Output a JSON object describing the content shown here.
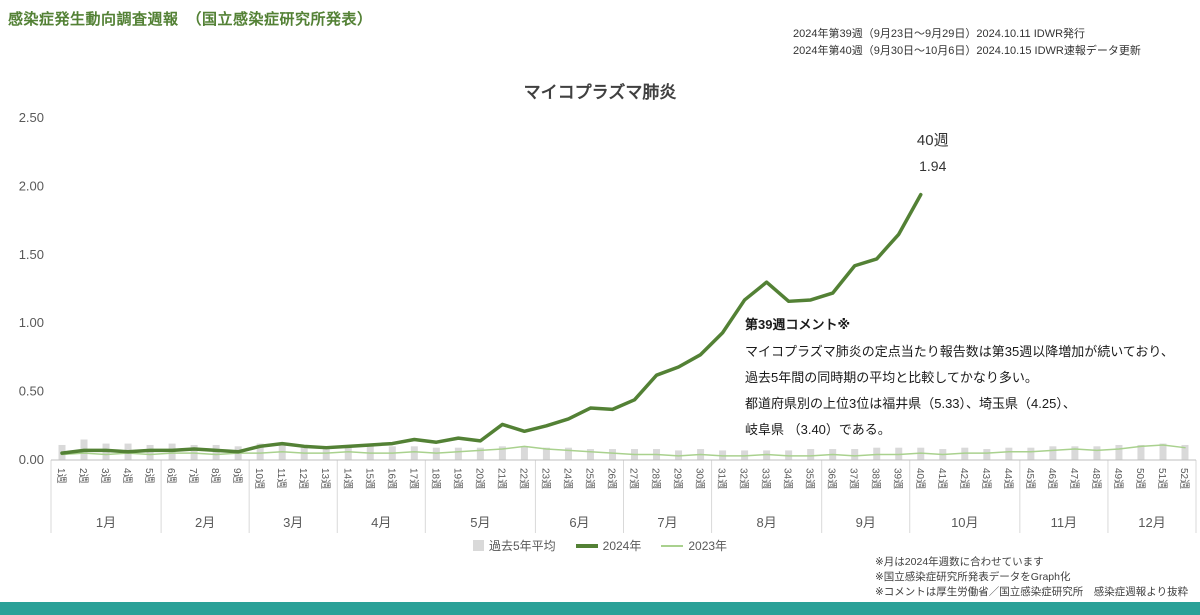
{
  "header": {
    "title": "感染症発生動向調査週報　（国立感染症研究所発表）",
    "issue_lines": [
      "2024年第39週（9月23日～9月29日）2024.10.11 IDWR発行",
      "2024年第40週（9月30日～10月6日）2024.10.15 IDWR速報データ更新"
    ]
  },
  "colors": {
    "accent_green": "#538135",
    "light_green": "#a9d18e",
    "avg_gray": "#d9d9d9",
    "footer_bar": "#2aa198",
    "axis_text": "#595959"
  },
  "chart_data": {
    "type": "line",
    "title": "マイコプラズマ肺炎",
    "ylim": [
      0,
      2.5
    ],
    "yticks": [
      "0.00",
      "0.50",
      "1.00",
      "1.50",
      "2.00",
      "2.50"
    ],
    "x_labels": [
      "1週",
      "2週",
      "3週",
      "4週",
      "5週",
      "6週",
      "7週",
      "8週",
      "9週",
      "10週",
      "11週",
      "12週",
      "13週",
      "14週",
      "15週",
      "16週",
      "17週",
      "18週",
      "19週",
      "20週",
      "21週",
      "22週",
      "23週",
      "24週",
      "25週",
      "26週",
      "27週",
      "28週",
      "29週",
      "30週",
      "31週",
      "32週",
      "33週",
      "34週",
      "35週",
      "36週",
      "37週",
      "38週",
      "39週",
      "40週",
      "41週",
      "42週",
      "43週",
      "44週",
      "45週",
      "46週",
      "47週",
      "48週",
      "49週",
      "50週",
      "51週",
      "52週"
    ],
    "months": [
      {
        "label": "1月",
        "weeks": 5
      },
      {
        "label": "2月",
        "weeks": 4
      },
      {
        "label": "3月",
        "weeks": 4
      },
      {
        "label": "4月",
        "weeks": 4
      },
      {
        "label": "5月",
        "weeks": 5
      },
      {
        "label": "6月",
        "weeks": 4
      },
      {
        "label": "7月",
        "weeks": 4
      },
      {
        "label": "8月",
        "weeks": 5
      },
      {
        "label": "9月",
        "weeks": 4
      },
      {
        "label": "10月",
        "weeks": 5
      },
      {
        "label": "11月",
        "weeks": 4
      },
      {
        "label": "12月",
        "weeks": 4
      }
    ],
    "series": [
      {
        "name": "過去5年平均",
        "type": "bar",
        "color": "#d9d9d9",
        "values": [
          0.11,
          0.15,
          0.12,
          0.12,
          0.11,
          0.12,
          0.11,
          0.11,
          0.1,
          0.12,
          0.11,
          0.1,
          0.1,
          0.1,
          0.1,
          0.1,
          0.1,
          0.09,
          0.09,
          0.09,
          0.1,
          0.1,
          0.09,
          0.09,
          0.08,
          0.08,
          0.08,
          0.08,
          0.07,
          0.08,
          0.07,
          0.07,
          0.07,
          0.07,
          0.08,
          0.08,
          0.08,
          0.09,
          0.09,
          0.09,
          0.08,
          0.09,
          0.08,
          0.09,
          0.09,
          0.1,
          0.1,
          0.1,
          0.11,
          0.11,
          0.12,
          0.11
        ]
      },
      {
        "name": "2024年",
        "type": "line",
        "color": "#538135",
        "width": 3.5,
        "values": [
          0.05,
          0.07,
          0.07,
          0.06,
          0.07,
          0.07,
          0.08,
          0.07,
          0.06,
          0.1,
          0.12,
          0.1,
          0.09,
          0.1,
          0.11,
          0.12,
          0.15,
          0.13,
          0.16,
          0.14,
          0.26,
          0.21,
          0.25,
          0.3,
          0.38,
          0.37,
          0.44,
          0.62,
          0.68,
          0.77,
          0.93,
          1.17,
          1.3,
          1.16,
          1.17,
          1.22,
          1.42,
          1.47,
          1.65,
          1.94
        ]
      },
      {
        "name": "2023年",
        "type": "line",
        "color": "#a9d18e",
        "width": 1.5,
        "values": [
          0.04,
          0.05,
          0.04,
          0.05,
          0.04,
          0.05,
          0.05,
          0.04,
          0.05,
          0.05,
          0.06,
          0.05,
          0.05,
          0.06,
          0.05,
          0.05,
          0.06,
          0.05,
          0.06,
          0.07,
          0.08,
          0.1,
          0.08,
          0.07,
          0.06,
          0.05,
          0.04,
          0.04,
          0.03,
          0.04,
          0.03,
          0.03,
          0.04,
          0.03,
          0.03,
          0.04,
          0.03,
          0.04,
          0.04,
          0.05,
          0.04,
          0.05,
          0.05,
          0.06,
          0.06,
          0.07,
          0.08,
          0.07,
          0.08,
          0.1,
          0.11,
          0.09
        ]
      }
    ],
    "annotation": {
      "week_index": 40,
      "week_label": "40週",
      "value_label": "1.94"
    }
  },
  "comment": {
    "title": "第39週コメント※",
    "lines": [
      "マイコプラズマ肺炎の定点当たり報告数は第35週以降増加が続いており、",
      "過去5年間の同時期の平均と比較してかなり多い。",
      "都道府県別の上位3位は福井県（5.33）、埼玉県（4.25）、",
      "岐阜県 （3.40）である。"
    ]
  },
  "footnotes": [
    "※月は2024年週数に合わせています",
    "※国立感染症研究所発表データをGraph化",
    "※コメントは厚生労働省／国立感染症研究所　感染症週報より抜粋"
  ]
}
